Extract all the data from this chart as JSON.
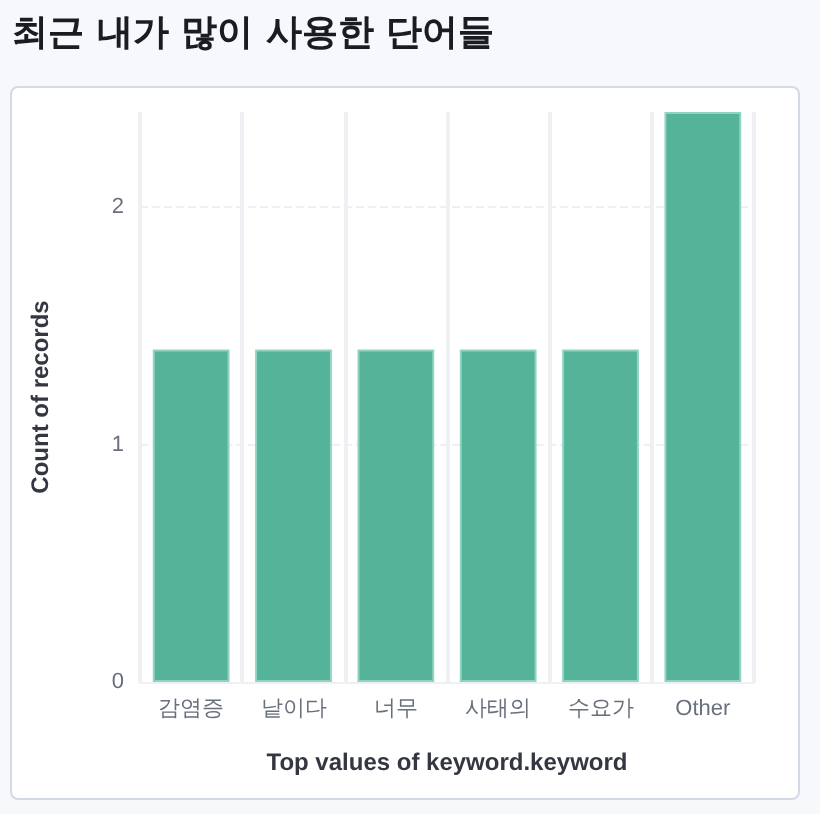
{
  "chart_data": {
    "type": "bar",
    "title": "최근 내가 많이 사용한 단어들",
    "xlabel": "Top values of keyword.keyword",
    "ylabel": "Count of records",
    "categories": [
      "감염증",
      "낱이다",
      "너무",
      "사태의",
      "수요가",
      "Other"
    ],
    "values": [
      1.4,
      1.4,
      1.4,
      1.4,
      1.4,
      2.4
    ],
    "color": "#54b399",
    "ylim": [
      0,
      2.4
    ],
    "yticks": [
      0,
      1,
      2
    ],
    "grid": true
  }
}
